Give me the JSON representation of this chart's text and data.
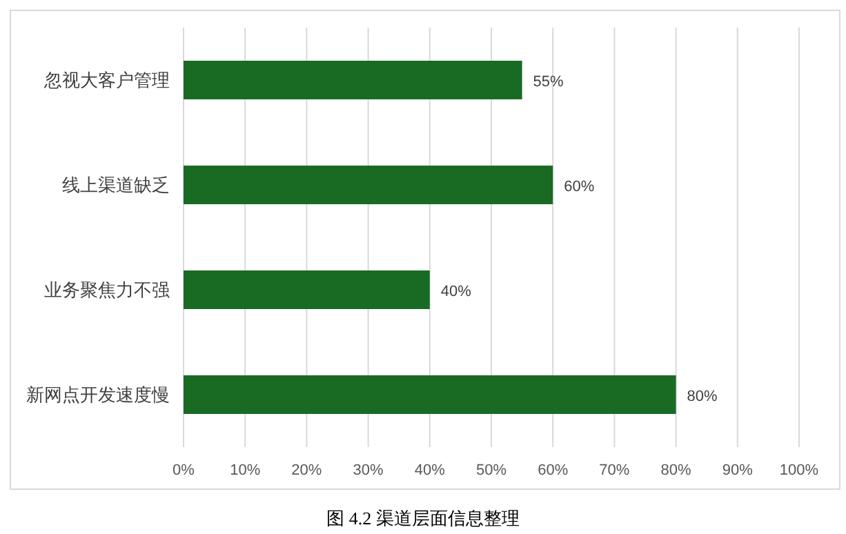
{
  "chart_data": {
    "type": "bar",
    "orientation": "horizontal",
    "categories": [
      "忽视大客户管理",
      "线上渠道缺乏",
      "业务聚焦力不强",
      "新网点开发速度慢"
    ],
    "values": [
      55,
      60,
      40,
      80
    ],
    "value_labels": [
      "55%",
      "60%",
      "40%",
      "80%"
    ],
    "color": "#196b24",
    "xlim": [
      0,
      100
    ],
    "xticks": [
      {
        "value": 0,
        "label": "0%"
      },
      {
        "value": 10,
        "label": "10%"
      },
      {
        "value": 20,
        "label": "20%"
      },
      {
        "value": 30,
        "label": "30%"
      },
      {
        "value": 40,
        "label": "40%"
      },
      {
        "value": 50,
        "label": "50%"
      },
      {
        "value": 60,
        "label": "60%"
      },
      {
        "value": 70,
        "label": "70%"
      },
      {
        "value": 80,
        "label": "80%"
      },
      {
        "value": 90,
        "label": "90%"
      },
      {
        "value": 100,
        "label": "100%"
      }
    ],
    "grid": "x",
    "annotations": [
      "图 4.2  渠道层面信息整理"
    ]
  }
}
